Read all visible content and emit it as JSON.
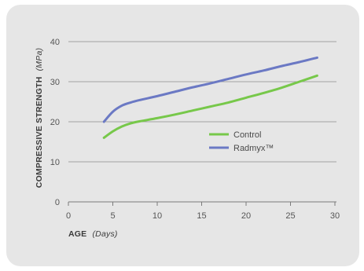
{
  "chart_data": {
    "type": "line",
    "title": "",
    "xlabel": "AGE",
    "xlabel_unit": "(Days)",
    "ylabel": "COMPRESSIVE STRENGTH",
    "ylabel_unit": "(MPa)",
    "xlim": [
      0,
      30
    ],
    "ylim": [
      0,
      40
    ],
    "xticks": [
      0,
      5,
      10,
      15,
      20,
      25,
      30
    ],
    "yticks": [
      0,
      10,
      20,
      30,
      40
    ],
    "grid": "horizontal",
    "legend_position": "right",
    "series": [
      {
        "name": "Control",
        "color": "#77c84a",
        "x": [
          4,
          5,
          6,
          7,
          8,
          10,
          12,
          14,
          16,
          18,
          20,
          22,
          24,
          26,
          28
        ],
        "y": [
          16.0,
          17.6,
          18.8,
          19.6,
          20.1,
          20.9,
          21.8,
          22.8,
          23.8,
          24.8,
          26.0,
          27.2,
          28.5,
          30.0,
          31.5
        ]
      },
      {
        "name": "Radmyx™",
        "color": "#6b79c4",
        "x": [
          4,
          5,
          6,
          7,
          8,
          10,
          12,
          14,
          16,
          18,
          20,
          22,
          24,
          26,
          28
        ],
        "y": [
          20.0,
          22.5,
          24.0,
          24.8,
          25.4,
          26.4,
          27.5,
          28.6,
          29.6,
          30.7,
          31.8,
          32.8,
          33.9,
          34.9,
          36.0
        ]
      }
    ]
  }
}
